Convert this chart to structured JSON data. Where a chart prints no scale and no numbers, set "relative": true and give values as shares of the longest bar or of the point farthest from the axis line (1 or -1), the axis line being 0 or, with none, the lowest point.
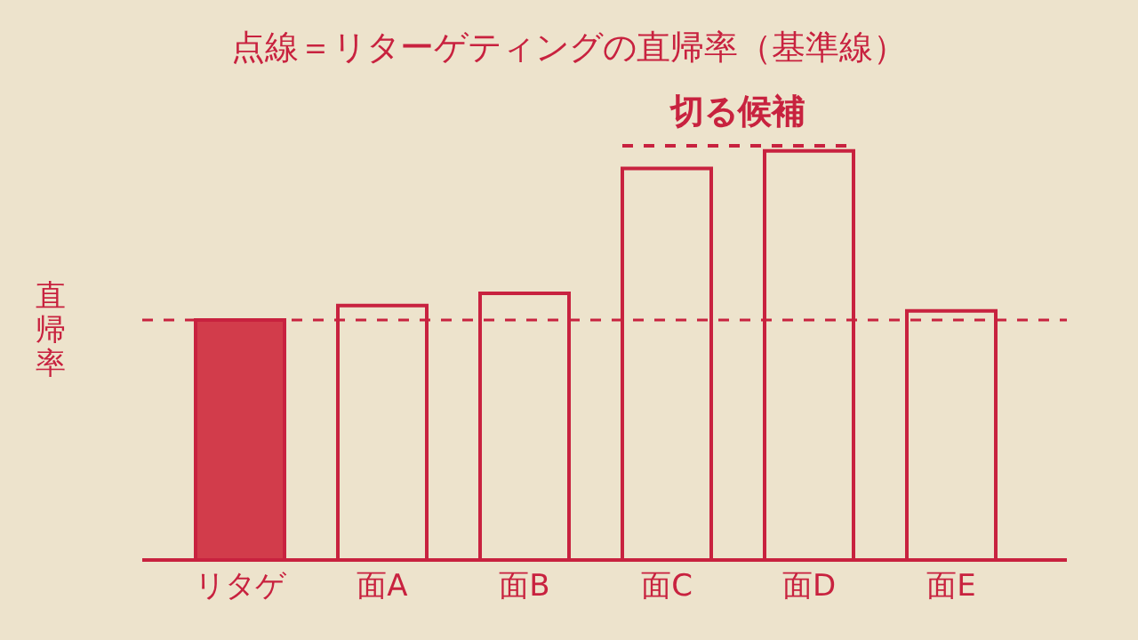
{
  "chart_data": {
    "type": "bar",
    "title": "点線＝リターゲティングの直帰率（基準線）",
    "ylabel": "直帰率",
    "relative": true,
    "categories": [
      "リタゲ",
      "面A",
      "面B",
      "面C",
      "面D",
      "面E"
    ],
    "values": [
      0.587,
      0.622,
      0.652,
      0.957,
      1,
      0.609
    ],
    "colors": [
      "#d23c4b",
      "#ede3cc",
      "#ede3cc",
      "#ede3cc",
      "#ede3cc",
      "#ede3cc"
    ],
    "ref_lines": [
      {
        "axis": "y",
        "value": 0.587,
        "line_style": "dashed",
        "color": "#c8223f"
      }
    ],
    "annotations": [
      "切る候補"
    ]
  }
}
